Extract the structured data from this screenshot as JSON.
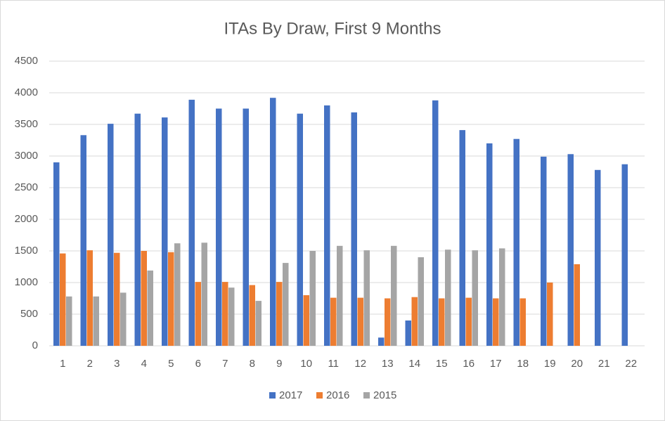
{
  "chart_data": {
    "type": "bar",
    "title": "ITAs By Draw, First 9 Months",
    "categories": [
      "1",
      "2",
      "3",
      "4",
      "5",
      "6",
      "7",
      "8",
      "9",
      "10",
      "11",
      "12",
      "13",
      "14",
      "15",
      "16",
      "17",
      "18",
      "19",
      "20",
      "21",
      "22"
    ],
    "series": [
      {
        "name": "2017",
        "color": "#4472c4",
        "values": [
          2900,
          3330,
          3510,
          3670,
          3610,
          3890,
          3750,
          3750,
          3920,
          3670,
          3800,
          3690,
          130,
          400,
          3880,
          3410,
          3200,
          3270,
          2990,
          3030,
          2780,
          2870
        ]
      },
      {
        "name": "2016",
        "color": "#ed7d31",
        "values": [
          1460,
          1510,
          1470,
          1500,
          1480,
          1010,
          1010,
          960,
          1010,
          800,
          760,
          760,
          750,
          770,
          750,
          760,
          750,
          750,
          1000,
          1290,
          null,
          null
        ]
      },
      {
        "name": "2015",
        "color": "#a5a5a5",
        "values": [
          780,
          780,
          840,
          1190,
          1620,
          1630,
          920,
          710,
          1310,
          1500,
          1580,
          1510,
          1580,
          1400,
          1520,
          1510,
          1540,
          null,
          null,
          null,
          null,
          null
        ]
      }
    ],
    "ylim": [
      0,
      4500
    ],
    "yticks": [
      0,
      500,
      1000,
      1500,
      2000,
      2500,
      3000,
      3500,
      4000,
      4500
    ],
    "grid": true,
    "legend": "bottom"
  }
}
